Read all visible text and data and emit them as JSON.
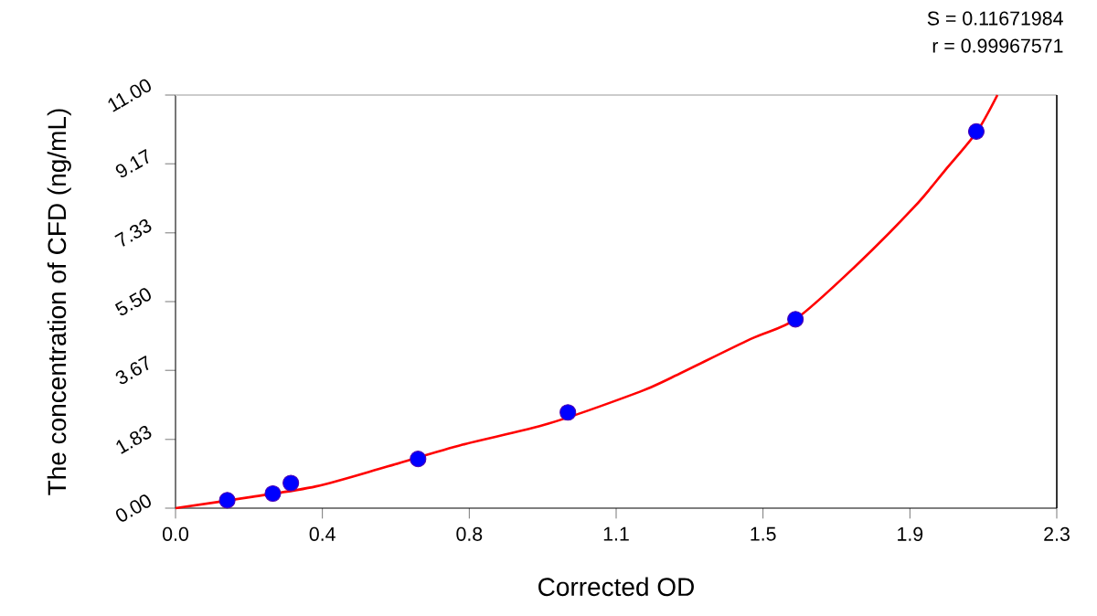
{
  "chart_data": {
    "type": "scatter",
    "xlabel": "Corrected OD",
    "ylabel": "The concentration of CFD (ng/mL)",
    "annotations": [
      "S = 0.11671984",
      "r = 0.99967571"
    ],
    "xlim": [
      0,
      2.3
    ],
    "ylim": [
      0,
      11
    ],
    "xticks": [
      {
        "value": 0,
        "label": "0.0"
      },
      {
        "value": 0.3833,
        "label": "0.4"
      },
      {
        "value": 0.7667,
        "label": "0.8"
      },
      {
        "value": 1.15,
        "label": "1.1"
      },
      {
        "value": 1.5333,
        "label": "1.5"
      },
      {
        "value": 1.9167,
        "label": "1.9"
      },
      {
        "value": 2.3,
        "label": "2.3"
      }
    ],
    "yticks": [
      {
        "value": 0,
        "label": "0.00"
      },
      {
        "value": 1.83,
        "label": "1.83"
      },
      {
        "value": 3.67,
        "label": "3.67"
      },
      {
        "value": 5.5,
        "label": "5.50"
      },
      {
        "value": 7.33,
        "label": "7.33"
      },
      {
        "value": 9.17,
        "label": "9.17"
      },
      {
        "value": 11,
        "label": "11.00"
      }
    ],
    "grid": false,
    "series": [
      {
        "type": "line",
        "color": "#ff0000",
        "marker": "none",
        "line_style": "solid",
        "x": [
          0,
          0.2,
          0.367,
          0.55,
          0.749,
          0.973,
          1.212,
          1.293,
          1.5,
          1.618,
          1.769,
          1.928,
          2.008,
          2.09,
          2.145
        ],
        "values": [
          0,
          0.3,
          0.58,
          1.1,
          1.69,
          2.25,
          3.1,
          3.47,
          4.5,
          5.03,
          6.39,
          8.02,
          8.99,
          10.0,
          11.0
        ]
      },
      {
        "color": "#0000ff",
        "marker": "circle",
        "x": [
          0.135,
          0.254,
          0.301,
          0.633,
          1.024,
          1.618,
          2.09
        ],
        "values": [
          0.21,
          0.39,
          0.67,
          1.31,
          2.55,
          5.03,
          10.03
        ]
      }
    ]
  }
}
